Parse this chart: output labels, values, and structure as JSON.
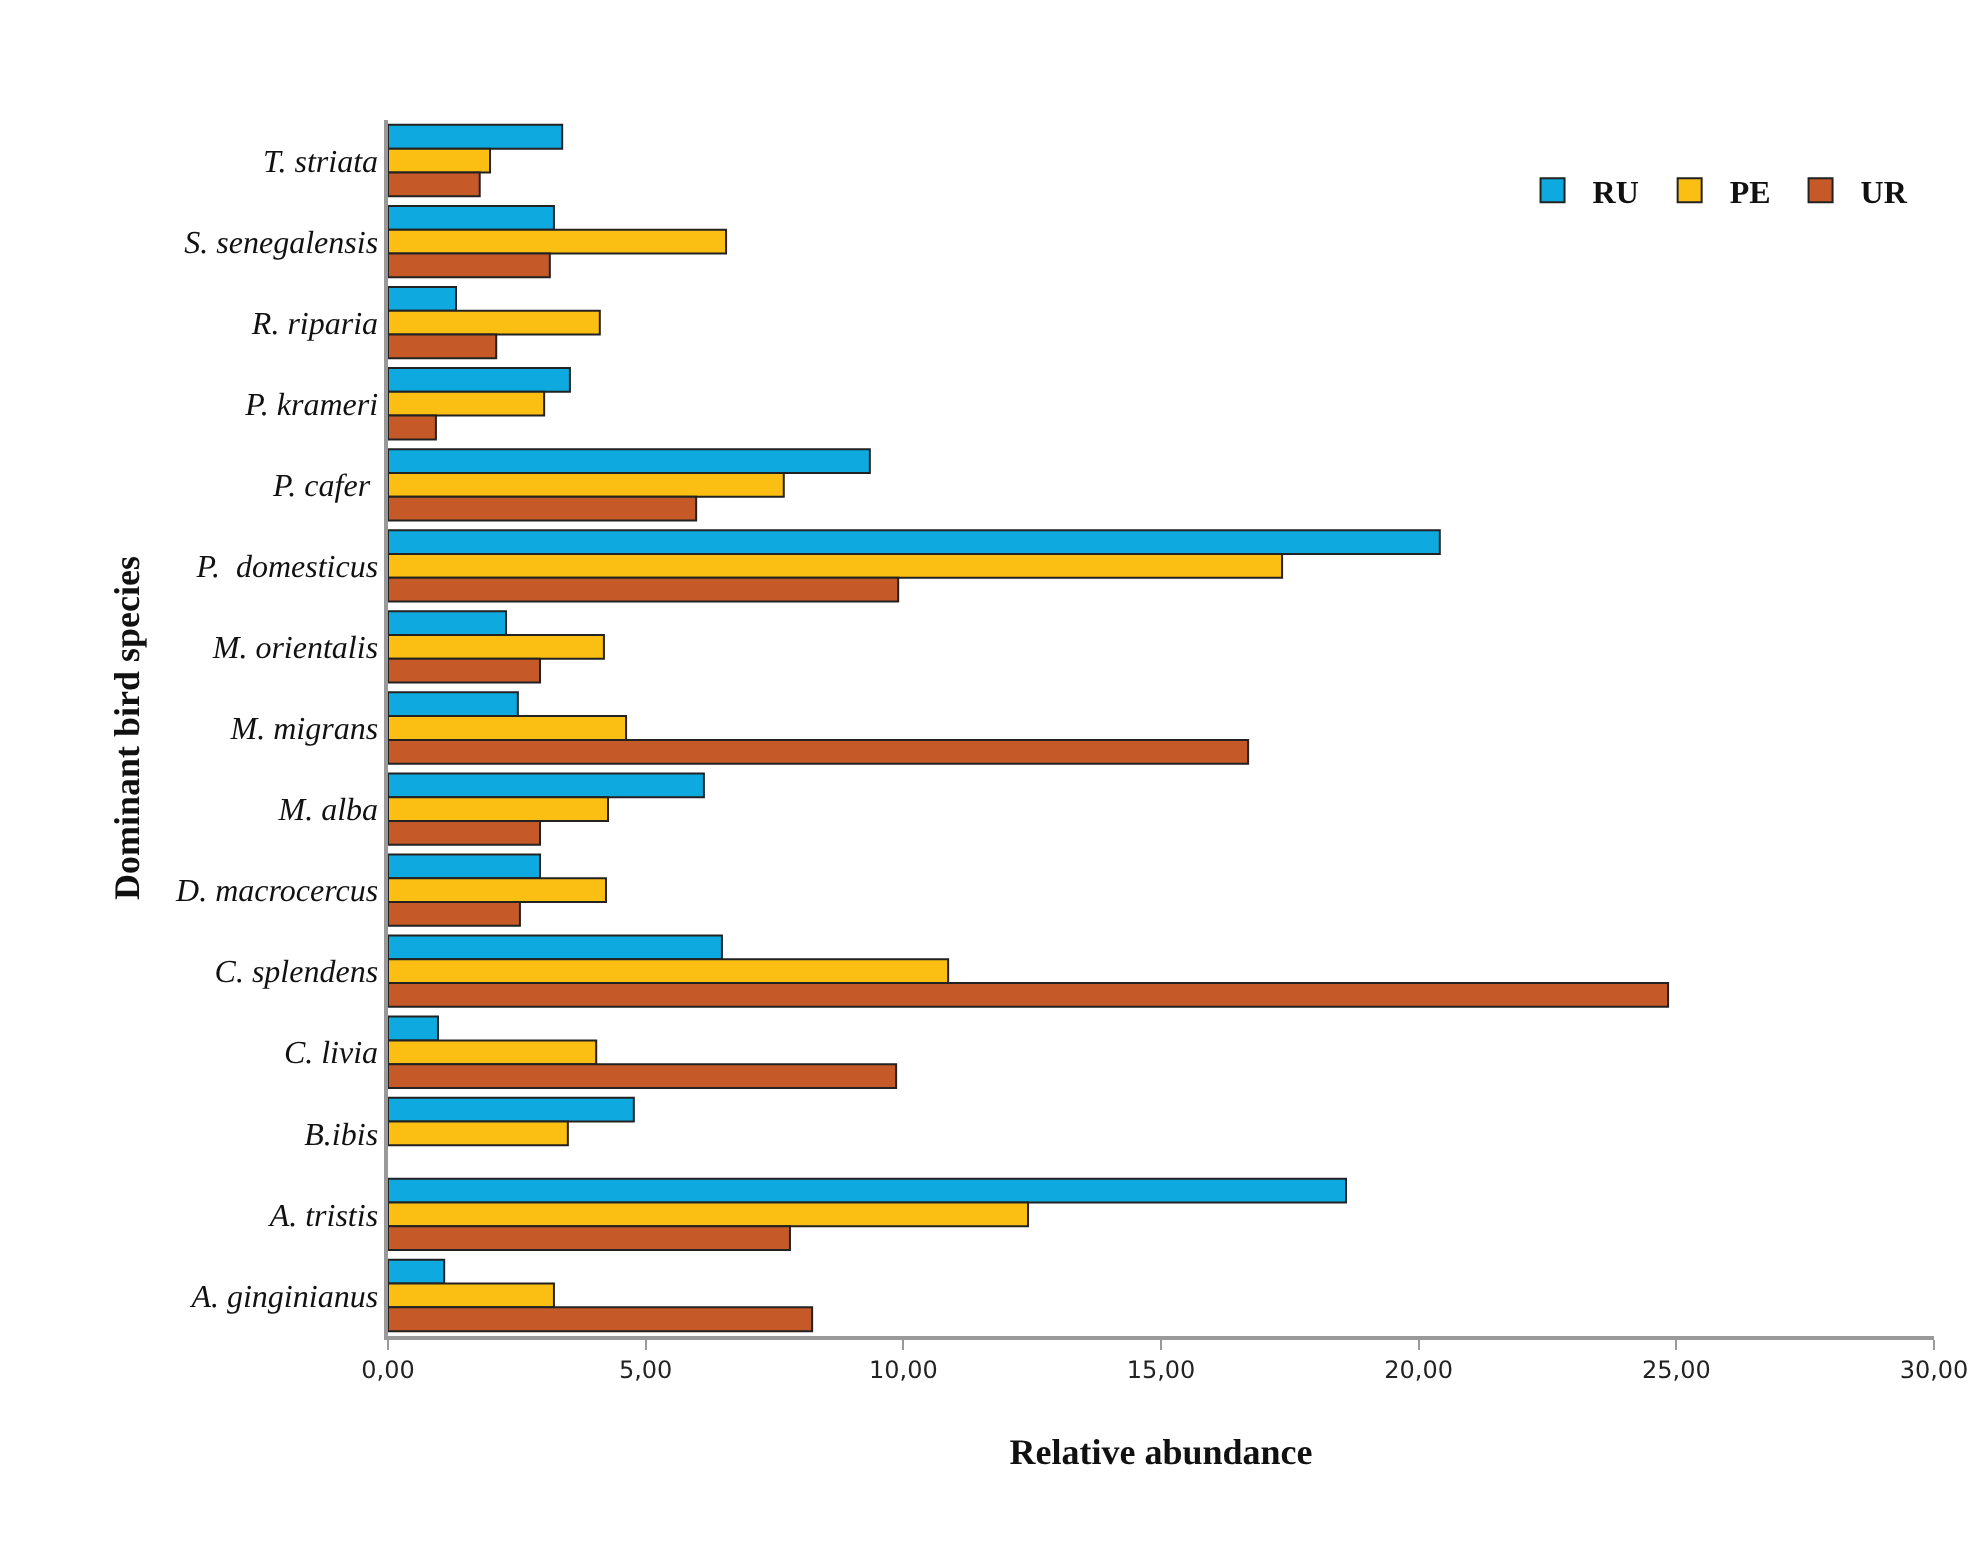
{
  "chart_data": {
    "type": "bar",
    "orientation": "horizontal",
    "xlabel": "Relative abundance",
    "ylabel": "Dominant bird species",
    "categories": [
      "T. striata",
      "S. senegalensis",
      "R. riparia",
      "P. krameri",
      "P. cafer ",
      "P.  domesticus",
      "M. orientalis",
      "M. migrans",
      "M. alba",
      "D. macrocercus",
      "C. splendens",
      "C. livia",
      "B.ibis",
      "A. tristis",
      "A. ginginianus"
    ],
    "series": [
      {
        "name": "RU",
        "color": "#0eaadf",
        "values": [
          3.38,
          3.22,
          1.32,
          3.53,
          9.35,
          20.41,
          2.29,
          2.52,
          6.13,
          2.95,
          6.48,
          0.97,
          4.77,
          18.59,
          1.09
        ]
      },
      {
        "name": "PE",
        "color": "#fbbf14",
        "values": [
          1.98,
          6.56,
          4.11,
          3.03,
          7.68,
          17.35,
          4.19,
          4.62,
          4.27,
          4.23,
          10.87,
          4.04,
          3.49,
          12.42,
          3.22
        ]
      },
      {
        "name": "UR",
        "color": "#c55a28",
        "values": [
          1.78,
          3.14,
          2.1,
          0.93,
          5.98,
          9.9,
          2.95,
          16.69,
          2.95,
          2.56,
          24.84,
          9.86,
          null,
          7.8,
          8.23
        ]
      }
    ],
    "xlim": [
      0,
      30
    ],
    "xticks": [
      {
        "value": 0,
        "label": "0,00"
      },
      {
        "value": 5,
        "label": "5,00"
      },
      {
        "value": 10,
        "label": "10,00"
      },
      {
        "value": 15,
        "label": "15,00"
      },
      {
        "value": 20,
        "label": "20,00"
      },
      {
        "value": 25,
        "label": "25,00"
      },
      {
        "value": 30,
        "label": "30,00"
      }
    ],
    "grid": false,
    "legend": "top right"
  }
}
